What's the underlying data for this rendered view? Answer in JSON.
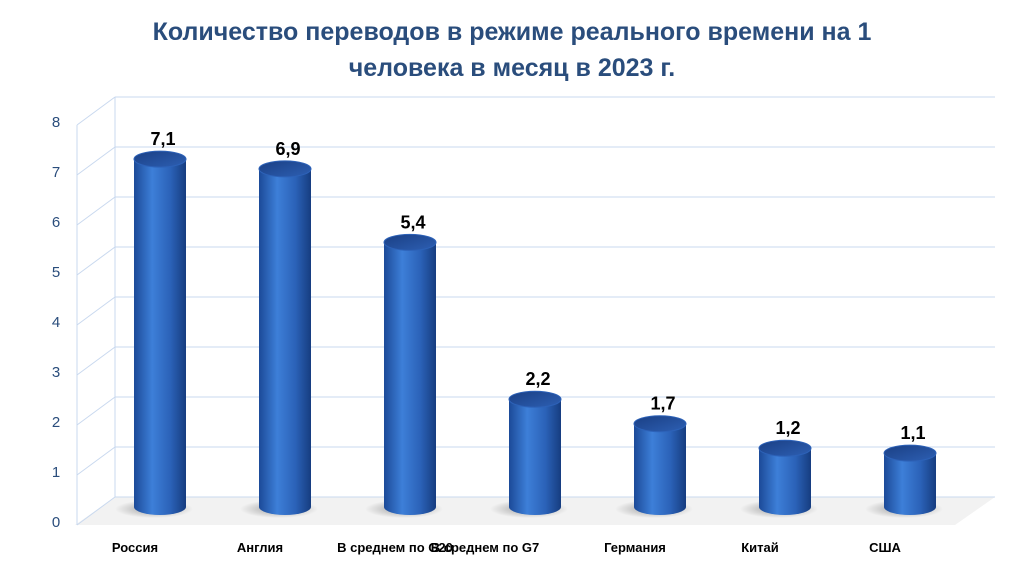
{
  "chart_data": {
    "type": "bar",
    "title_lines": [
      "Количество переводов в режиме реального времени на 1",
      "человека в месяц в 2023 г."
    ],
    "categories": [
      "Россия",
      "Англия",
      "В среднем по G20",
      "В среднем по G7",
      "Германия",
      "Китай",
      "США"
    ],
    "values": [
      7.1,
      6.9,
      5.4,
      2.2,
      1.7,
      1.2,
      1.1
    ],
    "value_labels": [
      "7,1",
      "6,9",
      "5,4",
      "2,2",
      "1,7",
      "1,2",
      "1,1"
    ],
    "y_ticks": [
      0,
      1,
      2,
      3,
      4,
      5,
      6,
      7,
      8
    ],
    "ylim": [
      0,
      8
    ],
    "grid": true,
    "legend": "none",
    "bar_color": "#2f6bc4",
    "bar_dark": "#163f86",
    "grid_color": "#c9d9ef",
    "title_color": "#2a4d7c"
  }
}
